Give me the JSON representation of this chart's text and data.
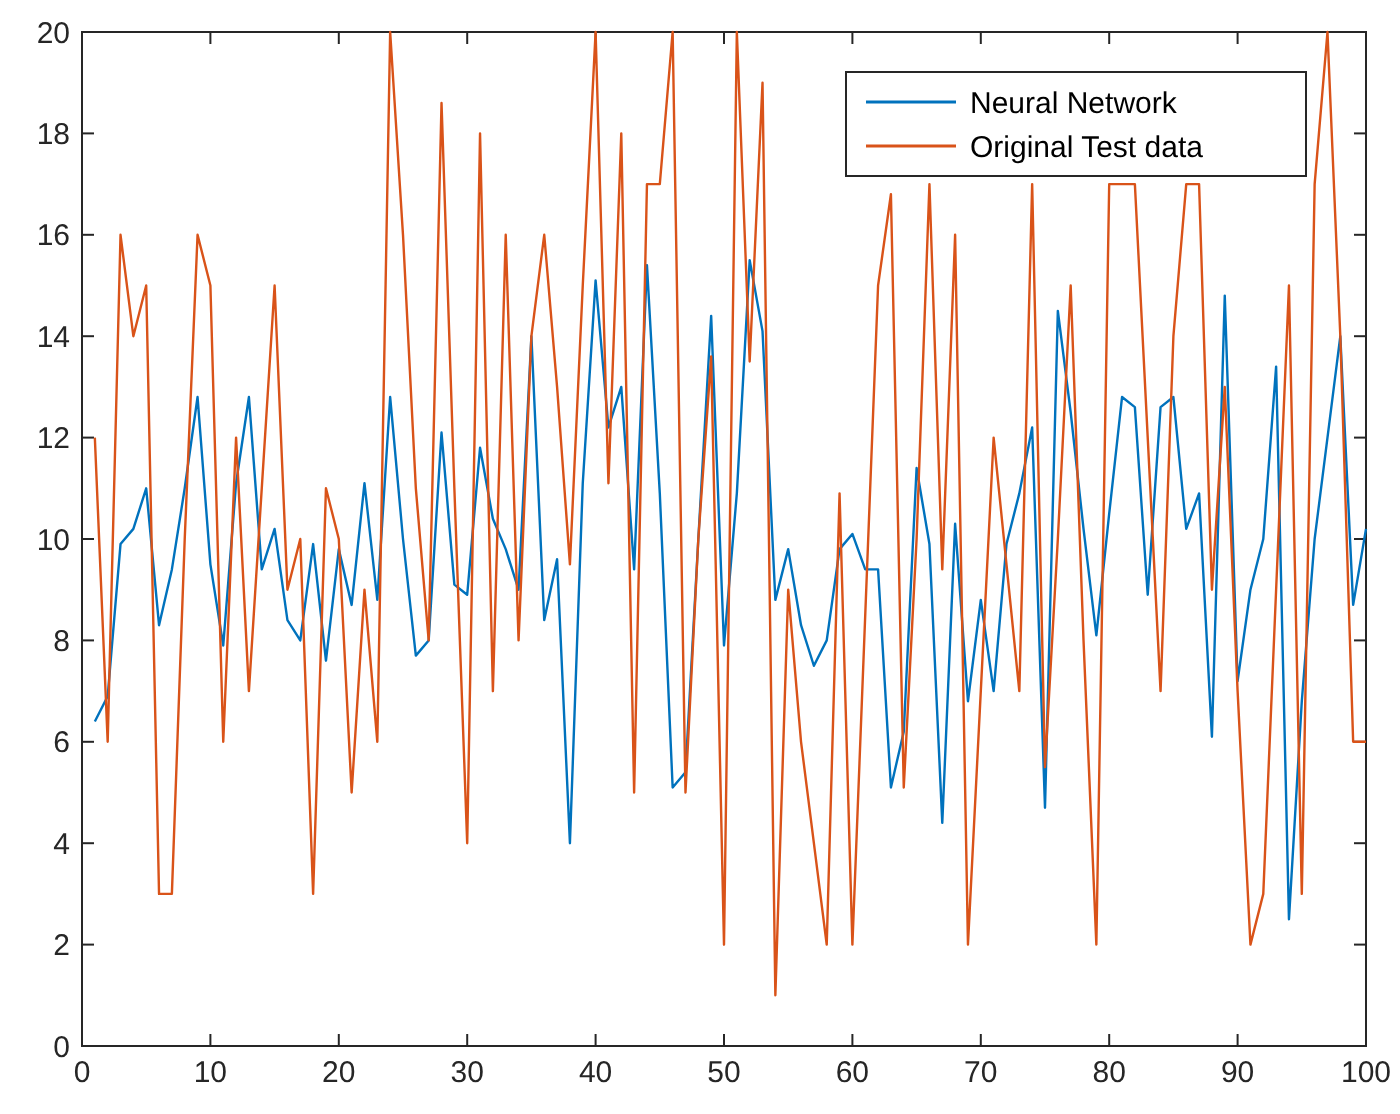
{
  "chart_data": {
    "type": "line",
    "x": [
      1,
      2,
      3,
      4,
      5,
      6,
      7,
      8,
      9,
      10,
      11,
      12,
      13,
      14,
      15,
      16,
      17,
      18,
      19,
      20,
      21,
      22,
      23,
      24,
      25,
      26,
      27,
      28,
      29,
      30,
      31,
      32,
      33,
      34,
      35,
      36,
      37,
      38,
      39,
      40,
      41,
      42,
      43,
      44,
      45,
      46,
      47,
      48,
      49,
      50,
      51,
      52,
      53,
      54,
      55,
      56,
      57,
      58,
      59,
      60,
      61,
      62,
      63,
      64,
      65,
      66,
      67,
      68,
      69,
      70,
      71,
      72,
      73,
      74,
      75,
      76,
      77,
      78,
      79,
      80,
      81,
      82,
      83,
      84,
      85,
      86,
      87,
      88,
      89,
      90,
      91,
      92,
      93,
      94,
      95,
      96,
      97,
      98,
      99,
      100
    ],
    "series": [
      {
        "name": "Neural Network",
        "color": "#0072bd",
        "values": [
          6.4,
          6.9,
          9.9,
          10.2,
          11,
          8.3,
          9.4,
          11,
          12.8,
          9.5,
          7.9,
          11.1,
          12.8,
          9.4,
          10.2,
          8.4,
          8,
          9.9,
          7.6,
          9.8,
          8.7,
          11.1,
          8.8,
          12.8,
          10,
          7.7,
          8,
          12.1,
          9.1,
          8.9,
          11.8,
          10.4,
          9.8,
          9,
          14,
          8.4,
          9.6,
          4,
          11.1,
          15.1,
          12.2,
          13,
          9.4,
          15.4,
          10.9,
          5.1,
          5.4,
          10,
          14.4,
          7.9,
          10.9,
          15.5,
          14.1,
          8.8,
          9.8,
          8.3,
          7.5,
          8,
          9.8,
          10.1,
          9.4,
          9.4,
          5.1,
          6.2,
          11.4,
          9.9,
          4.4,
          10.3,
          6.8,
          8.8,
          7,
          9.9,
          10.9,
          12.2,
          4.7,
          14.5,
          12.5,
          10.2,
          8.1,
          10.5,
          12.8,
          12.6,
          8.9,
          12.6,
          12.8,
          10.2,
          10.9,
          6.1,
          14.8,
          7.2,
          9,
          10,
          13.4,
          2.5,
          6.8,
          10,
          12,
          14,
          8.7,
          10.2
        ]
      },
      {
        "name": "Original Test data",
        "color": "#d95319",
        "values": [
          12,
          6,
          16,
          14,
          15,
          3,
          3,
          10,
          16,
          15,
          6,
          12,
          7,
          11,
          15,
          9,
          10,
          3,
          11,
          10,
          5,
          9,
          6,
          20,
          16,
          11,
          8,
          18.6,
          11,
          4,
          18,
          7,
          16,
          8,
          14,
          16,
          13,
          9.5,
          15,
          20,
          11.1,
          18,
          5,
          17,
          17,
          20,
          5,
          10,
          13.6,
          2,
          20,
          13.5,
          19,
          1,
          9,
          6,
          4,
          2,
          10.9,
          2,
          null,
          15,
          16.8,
          5.1,
          10,
          17,
          9.4,
          16,
          2,
          7,
          12,
          9.5,
          7,
          17,
          5.5,
          10,
          15,
          8,
          2,
          17,
          17,
          17,
          12,
          7,
          14,
          17,
          17,
          9,
          13,
          7,
          2,
          3,
          9,
          15,
          3,
          17,
          20,
          14,
          6,
          6
        ]
      }
    ],
    "xlim": [
      0,
      100
    ],
    "xticks": [
      0,
      10,
      20,
      30,
      40,
      50,
      60,
      70,
      80,
      90,
      100
    ],
    "ylim": [
      0,
      20
    ],
    "yticks": [
      0,
      2,
      4,
      6,
      8,
      10,
      12,
      14,
      16,
      18,
      20
    ],
    "legend": "top right",
    "grid": false,
    "marker": "none",
    "line_style": "solid"
  }
}
